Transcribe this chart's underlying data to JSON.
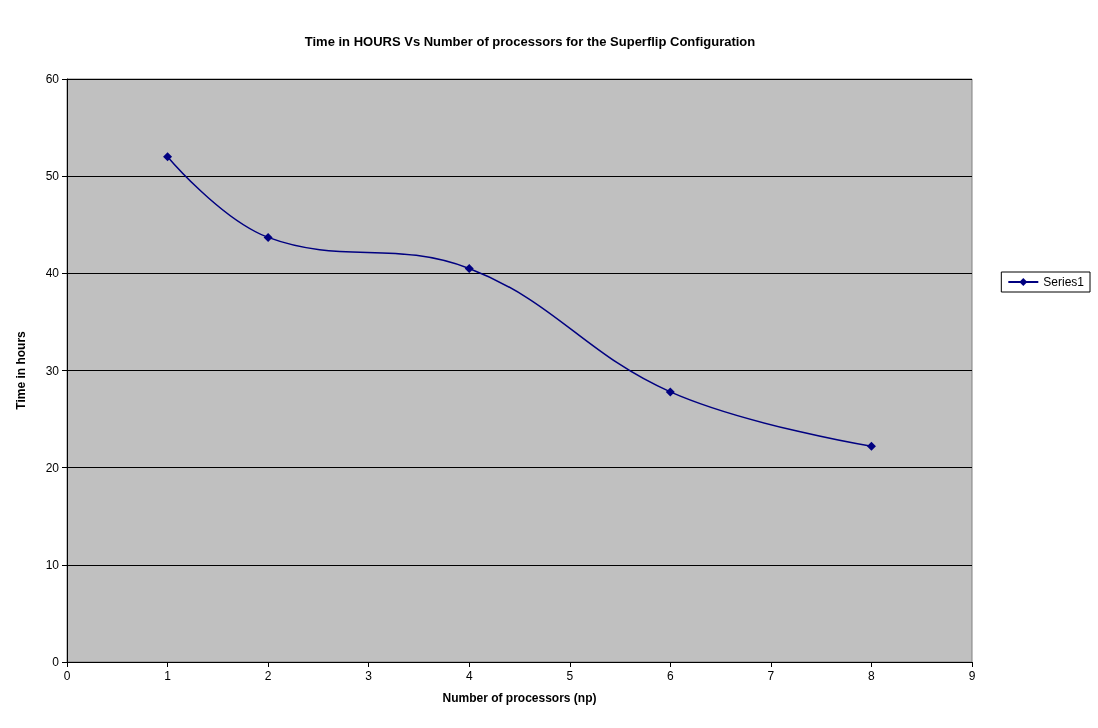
{
  "chart_data": {
    "type": "line",
    "title": "Time in HOURS Vs Number of processors for the Superflip Configuration",
    "xlabel": "Number of processors (np)",
    "ylabel": "Time in hours",
    "x": [
      1,
      2,
      4,
      6,
      8
    ],
    "series": [
      {
        "name": "Series1",
        "color": "#000080",
        "values": [
          52.0,
          43.7,
          40.5,
          27.8,
          22.2
        ]
      }
    ],
    "xlim": [
      0,
      9
    ],
    "xticks": [
      0,
      1,
      2,
      3,
      4,
      5,
      6,
      7,
      8,
      9
    ],
    "ylim": [
      0,
      60
    ],
    "yticks": [
      0,
      10,
      20,
      30,
      40,
      50,
      60
    ],
    "grid": "y",
    "legend": "right",
    "marker": "diamond",
    "line_style": "solid"
  }
}
